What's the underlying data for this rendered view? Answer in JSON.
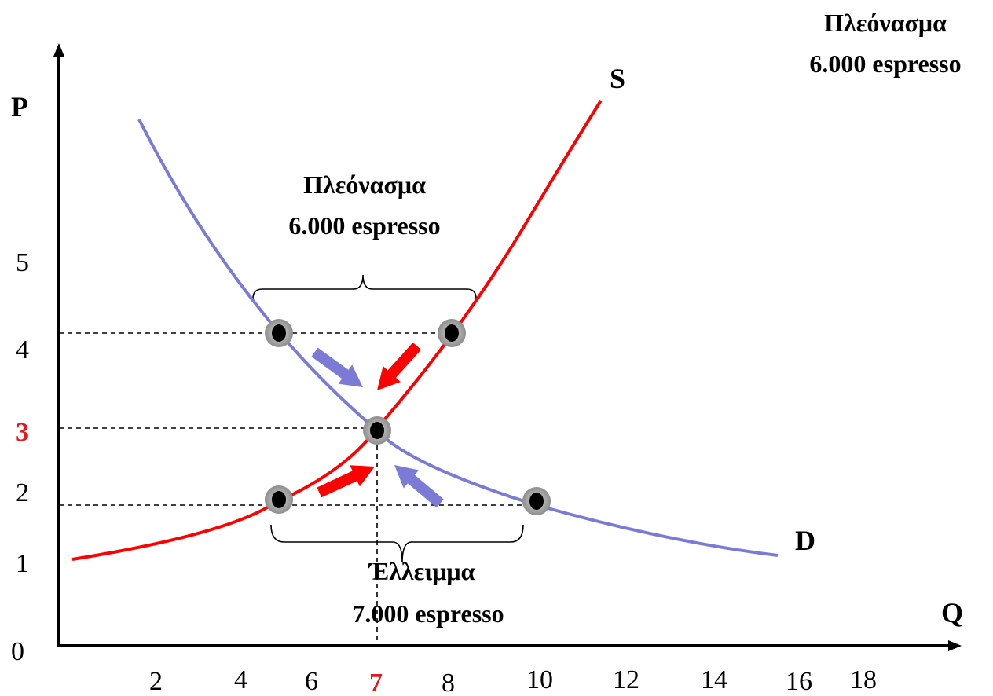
{
  "axes": {
    "y_title": "P",
    "x_title": "Q",
    "y_ticks": [
      "0",
      "1",
      "2",
      "3",
      "4",
      "5"
    ],
    "x_ticks": [
      "2",
      "4",
      "6",
      "7",
      "8",
      "10",
      "12",
      "14",
      "16",
      "18"
    ],
    "highlight_color": "#e8171c"
  },
  "curves": {
    "supply_label": "S",
    "demand_label": "D",
    "supply_color": "#ff0000",
    "demand_color": "#7b7bd6"
  },
  "notes": {
    "surplus_corner_line1": "Πλεόνασμα",
    "surplus_corner_line2": "6.000 espresso",
    "surplus_line1": "Πλεόνασμα",
    "surplus_line2": "6.000 espresso",
    "shortage_line1": "Έλλειμμα",
    "shortage_line2": "7.000 espresso"
  },
  "arrows": {
    "demand_side_color": "#7b7bd6",
    "supply_side_color": "#ff0000"
  }
}
